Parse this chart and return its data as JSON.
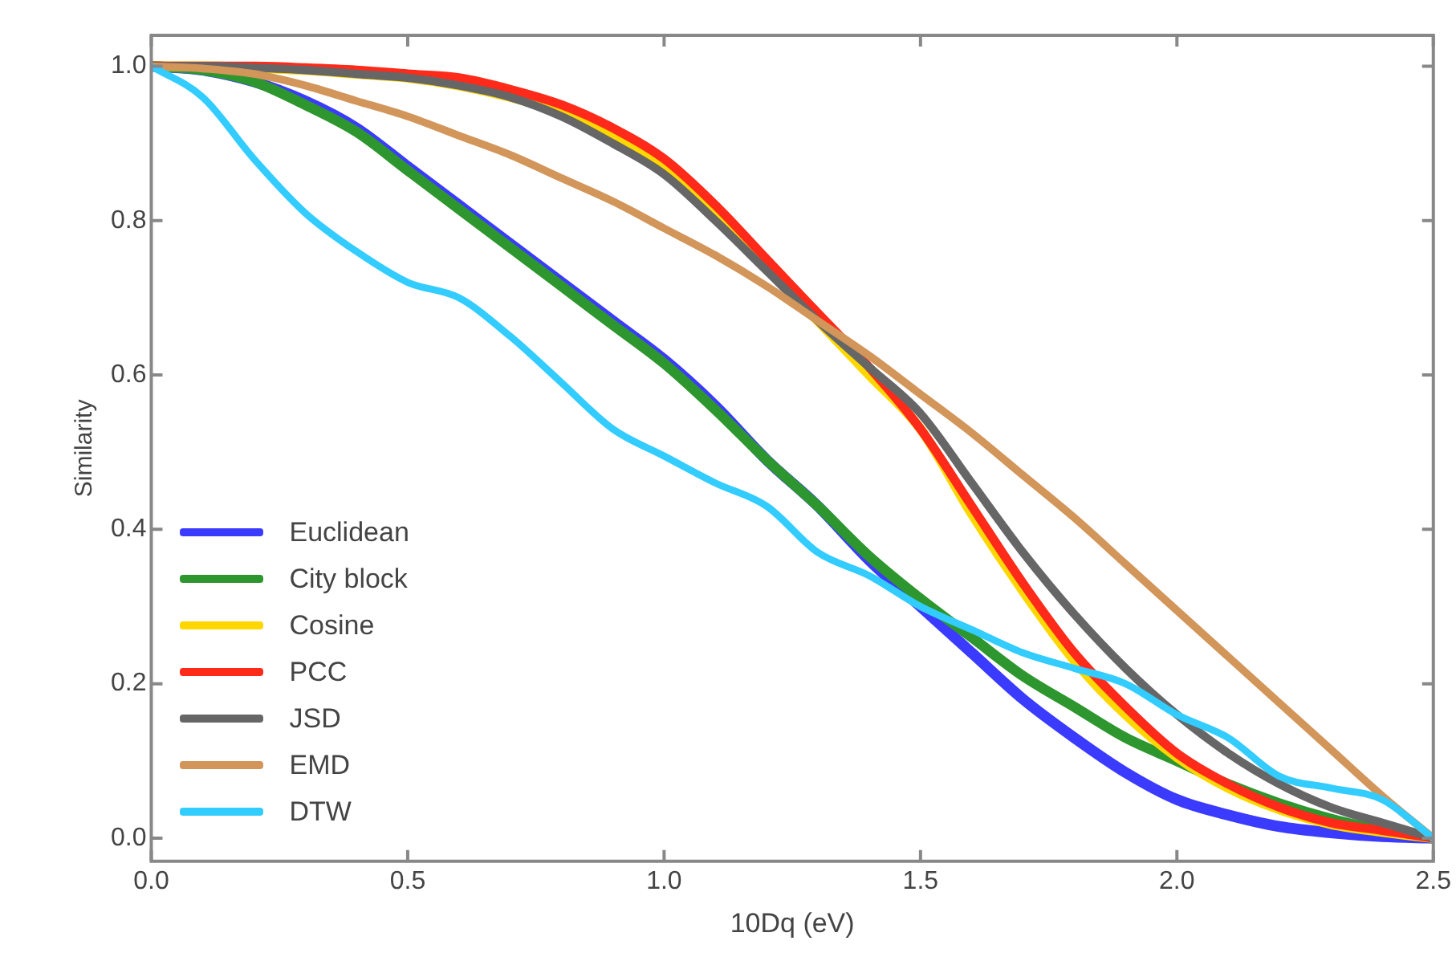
{
  "chart_data": {
    "type": "line",
    "xlabel": "10Dq (eV)",
    "ylabel": "Similarity",
    "x": [
      0,
      0.1,
      0.2,
      0.3,
      0.4,
      0.5,
      0.6,
      0.7,
      0.8,
      0.9,
      1.0,
      1.1,
      1.2,
      1.3,
      1.4,
      1.5,
      1.6,
      1.7,
      1.8,
      1.9,
      2.0,
      2.1,
      2.2,
      2.3,
      2.4,
      2.5
    ],
    "series": [
      {
        "name": "Euclidean",
        "color": "#3b3bff",
        "values": [
          1,
          0.995,
          0.98,
          0.955,
          0.92,
          0.87,
          0.82,
          0.77,
          0.72,
          0.67,
          0.62,
          0.56,
          0.49,
          0.43,
          0.36,
          0.3,
          0.24,
          0.18,
          0.13,
          0.085,
          0.05,
          0.03,
          0.015,
          0.007,
          0.002,
          0
        ]
      },
      {
        "name": "City block",
        "color": "#2e962e",
        "values": [
          1,
          0.995,
          0.98,
          0.95,
          0.915,
          0.865,
          0.815,
          0.765,
          0.715,
          0.665,
          0.615,
          0.555,
          0.49,
          0.43,
          0.365,
          0.31,
          0.26,
          0.21,
          0.17,
          0.13,
          0.1,
          0.07,
          0.045,
          0.025,
          0.01,
          0
        ]
      },
      {
        "name": "Cosine",
        "color": "#ffd700",
        "values": [
          1,
          1,
          0.998,
          0.995,
          0.99,
          0.985,
          0.975,
          0.96,
          0.94,
          0.91,
          0.87,
          0.81,
          0.74,
          0.67,
          0.6,
          0.53,
          0.42,
          0.32,
          0.23,
          0.16,
          0.105,
          0.065,
          0.037,
          0.018,
          0.008,
          0
        ]
      },
      {
        "name": "PCC",
        "color": "#ff2a1a",
        "values": [
          1,
          1,
          1,
          0.998,
          0.995,
          0.99,
          0.985,
          0.97,
          0.95,
          0.92,
          0.88,
          0.82,
          0.75,
          0.68,
          0.61,
          0.53,
          0.43,
          0.33,
          0.24,
          0.17,
          0.11,
          0.07,
          0.04,
          0.02,
          0.01,
          0
        ]
      },
      {
        "name": "JSD",
        "color": "#666666",
        "values": [
          1,
          1,
          0.998,
          0.995,
          0.99,
          0.985,
          0.975,
          0.96,
          0.935,
          0.9,
          0.86,
          0.8,
          0.735,
          0.67,
          0.61,
          0.55,
          0.46,
          0.37,
          0.29,
          0.22,
          0.16,
          0.11,
          0.07,
          0.04,
          0.02,
          0
        ]
      },
      {
        "name": "EMD",
        "color": "#d2955a",
        "values": [
          1,
          0.997,
          0.99,
          0.975,
          0.955,
          0.935,
          0.91,
          0.885,
          0.855,
          0.825,
          0.79,
          0.755,
          0.715,
          0.67,
          0.625,
          0.575,
          0.525,
          0.47,
          0.415,
          0.355,
          0.295,
          0.235,
          0.175,
          0.115,
          0.055,
          0
        ]
      },
      {
        "name": "DTW",
        "color": "#33ccff",
        "values": [
          1,
          0.96,
          0.88,
          0.81,
          0.76,
          0.72,
          0.7,
          0.65,
          0.59,
          0.53,
          0.495,
          0.46,
          0.43,
          0.37,
          0.34,
          0.3,
          0.27,
          0.24,
          0.22,
          0.2,
          0.16,
          0.13,
          0.08,
          0.065,
          0.05,
          0
        ]
      }
    ],
    "xlim": [
      0,
      2.5
    ],
    "xticks": [
      {
        "value": 0,
        "label": "0.0"
      },
      {
        "value": 0.5,
        "label": "0.5"
      },
      {
        "value": 1,
        "label": "1.0"
      },
      {
        "value": 1.5,
        "label": "1.5"
      },
      {
        "value": 2,
        "label": "2.0"
      },
      {
        "value": 2.5,
        "label": "2.5"
      }
    ],
    "ylim": [
      -0.03,
      1.04
    ],
    "yticks": [
      {
        "value": 0,
        "label": "0.0"
      },
      {
        "value": 0.2,
        "label": "0.2"
      },
      {
        "value": 0.4,
        "label": "0.4"
      },
      {
        "value": 0.6,
        "label": "0.6"
      },
      {
        "value": 0.8,
        "label": "0.8"
      },
      {
        "value": 1,
        "label": "1.0"
      }
    ],
    "grid": false,
    "legend": "bottom left",
    "marker": "none",
    "line_style": "solid"
  }
}
